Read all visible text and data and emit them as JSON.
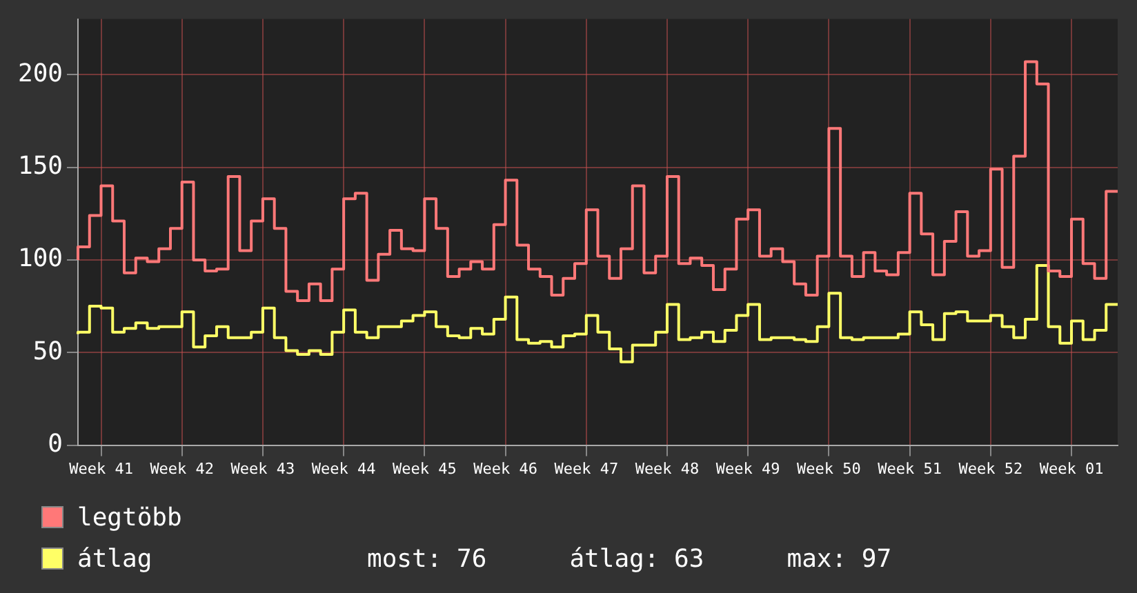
{
  "chart_data": {
    "type": "step",
    "categories": [
      null,
      null,
      "Week 41",
      null,
      null,
      null,
      null,
      null,
      null,
      "Week 42",
      null,
      null,
      null,
      null,
      null,
      null,
      "Week 43",
      null,
      null,
      null,
      null,
      null,
      null,
      "Week 44",
      null,
      null,
      null,
      null,
      null,
      null,
      "Week 45",
      null,
      null,
      null,
      null,
      null,
      null,
      "Week 46",
      null,
      null,
      null,
      null,
      null,
      null,
      "Week 47",
      null,
      null,
      null,
      null,
      null,
      null,
      "Week 48",
      null,
      null,
      null,
      null,
      null,
      null,
      "Week 49",
      null,
      null,
      null,
      null,
      null,
      null,
      "Week 50",
      null,
      null,
      null,
      null,
      null,
      null,
      "Week 51",
      null,
      null,
      null,
      null,
      null,
      null,
      "Week 52",
      null,
      null,
      null,
      null,
      null,
      null,
      "Week 01",
      null,
      null,
      null,
      null
    ],
    "series": [
      {
        "name": "legtöbb",
        "color": "#ff7878",
        "values": [
          100,
          107,
          124,
          140,
          121,
          93,
          101,
          99,
          106,
          117,
          142,
          100,
          94,
          95,
          145,
          105,
          121,
          133,
          117,
          83,
          78,
          87,
          78,
          95,
          133,
          136,
          89,
          103,
          116,
          106,
          105,
          133,
          117,
          91,
          95,
          99,
          95,
          119,
          143,
          108,
          95,
          91,
          81,
          90,
          98,
          127,
          102,
          90,
          106,
          140,
          93,
          102,
          145,
          98,
          101,
          97,
          84,
          95,
          122,
          127,
          102,
          106,
          99,
          87,
          81,
          102,
          171,
          102,
          91,
          104,
          94,
          92,
          104,
          136,
          114,
          92,
          110,
          126,
          102,
          105,
          149,
          96,
          156,
          207,
          195,
          94,
          91,
          122,
          98,
          90,
          137
        ]
      },
      {
        "name": "átlag",
        "color": "#ffff66",
        "values": [
          60,
          61,
          75,
          74,
          61,
          63,
          66,
          63,
          64,
          64,
          72,
          53,
          59,
          64,
          58,
          58,
          61,
          74,
          58,
          51,
          49,
          51,
          49,
          61,
          73,
          61,
          58,
          64,
          64,
          67,
          70,
          72,
          64,
          59,
          58,
          63,
          60,
          68,
          80,
          57,
          55,
          56,
          53,
          59,
          60,
          70,
          61,
          52,
          45,
          54,
          54,
          61,
          76,
          57,
          58,
          61,
          56,
          62,
          70,
          76,
          57,
          58,
          58,
          57,
          56,
          64,
          82,
          58,
          57,
          58,
          58,
          58,
          60,
          72,
          65,
          57,
          71,
          72,
          67,
          67,
          70,
          64,
          58,
          68,
          97,
          64,
          55,
          67,
          57,
          62,
          76
        ]
      }
    ],
    "ylim": [
      0,
      230
    ],
    "yticks": [
      0,
      50,
      100,
      150,
      200
    ],
    "grid": true,
    "legend": "bottom left",
    "annotations": [
      "most: 76",
      "átlag: 63",
      "max: 97"
    ]
  }
}
